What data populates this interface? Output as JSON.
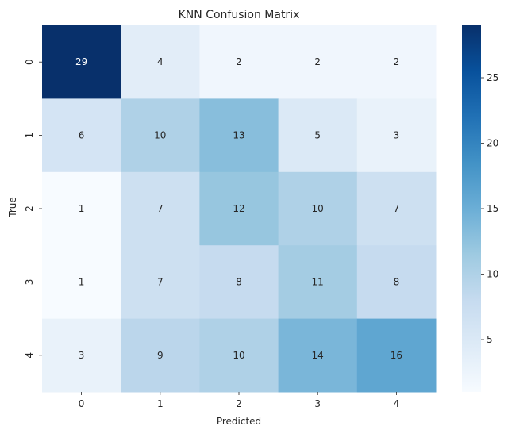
{
  "chart_data": {
    "type": "heatmap",
    "title": "KNN Confusion Matrix",
    "xlabel": "Predicted",
    "ylabel": "True",
    "x_categories": [
      "0",
      "1",
      "2",
      "3",
      "4"
    ],
    "y_categories": [
      "0",
      "1",
      "2",
      "3",
      "4"
    ],
    "values": [
      [
        29,
        4,
        2,
        2,
        2
      ],
      [
        6,
        10,
        13,
        5,
        3
      ],
      [
        1,
        7,
        12,
        10,
        7
      ],
      [
        1,
        7,
        8,
        11,
        8
      ],
      [
        3,
        9,
        10,
        14,
        16
      ]
    ],
    "annotated": true,
    "colormap": "Blues",
    "vmin": 1,
    "vmax": 29,
    "colorbar_ticks": [
      5,
      10,
      15,
      20,
      25
    ],
    "grid": false,
    "legend": "colorbar-right"
  }
}
